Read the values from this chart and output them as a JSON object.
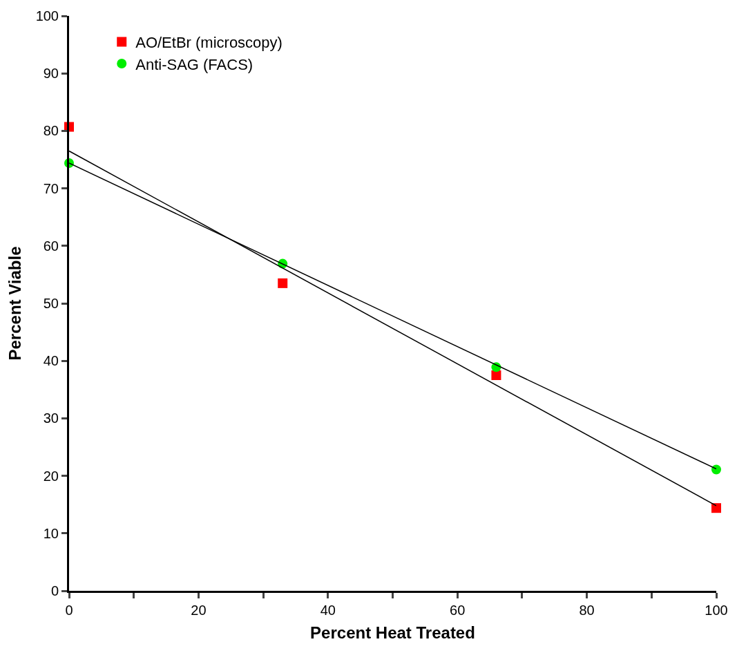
{
  "chart_data": {
    "type": "scatter",
    "xlabel": "Percent Heat Treated",
    "ylabel": "Percent Viable",
    "xlim": [
      0,
      100
    ],
    "ylim": [
      0,
      100
    ],
    "xticks": [
      0,
      {
        "value": 10,
        "label": null
      },
      20,
      {
        "value": 30,
        "label": null
      },
      40,
      {
        "value": 50,
        "label": null
      },
      60,
      {
        "value": 70,
        "label": null
      },
      80,
      {
        "value": 90,
        "label": null
      },
      100
    ],
    "yticks": [
      0,
      10,
      20,
      30,
      40,
      50,
      60,
      70,
      80,
      90,
      100
    ],
    "legend": "top left",
    "series": [
      {
        "name": "AO/EtBr (microscopy)",
        "color": "#ff0000",
        "marker": "square",
        "x": [
          0,
          33,
          66,
          100
        ],
        "values": [
          80.7,
          53.5,
          37.5,
          14.4
        ]
      },
      {
        "name": "Anti-SAG (FACS)",
        "color": "#00ee00",
        "marker": "circle",
        "x": [
          0,
          33,
          66,
          100
        ],
        "values": [
          74.4,
          56.9,
          38.9,
          21.1
        ]
      },
      {
        "type": "line",
        "color": "#000000",
        "x": [
          0,
          100
        ],
        "values": [
          76.5,
          14.8
        ]
      },
      {
        "type": "line",
        "color": "#000000",
        "x": [
          0,
          100
        ],
        "values": [
          74.4,
          21.2
        ]
      }
    ]
  }
}
